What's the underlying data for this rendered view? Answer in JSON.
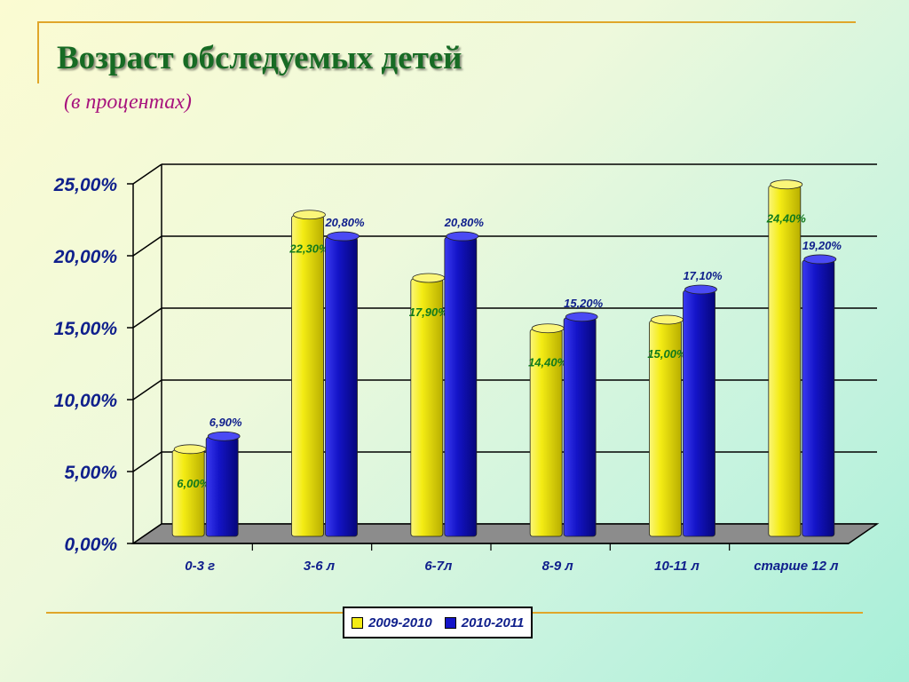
{
  "slide": {
    "title": "Возраст  обследуемых  детей",
    "subtitle": "(в процентах)"
  },
  "chart_data": {
    "type": "bar",
    "title": "",
    "xlabel": "",
    "ylabel": "",
    "categories": [
      "0-3 г",
      "3-6 л",
      "6-7л",
      "8-9 л",
      "10-11 л",
      "старше 12 л"
    ],
    "series": [
      {
        "name": "2009-2010",
        "color": "#f4ec14",
        "values": [
          6.0,
          22.3,
          17.9,
          14.4,
          15.0,
          24.4
        ],
        "labels": [
          "6,00%",
          "22,30%",
          "17,90%",
          "14,40%",
          "15,00%",
          "24,40%"
        ]
      },
      {
        "name": "2010-2011",
        "color": "#1414c8",
        "values": [
          6.9,
          20.8,
          20.8,
          15.2,
          17.1,
          19.2
        ],
        "labels": [
          "6,90%",
          "20,80%",
          "20,80%",
          "15,20%",
          "17,10%",
          "19,20%"
        ]
      }
    ],
    "ylim": [
      0,
      25
    ],
    "yticks": [
      0,
      5,
      10,
      15,
      20,
      25
    ],
    "ytick_labels": [
      "0,00%",
      "5,00%",
      "10,00%",
      "15,00%",
      "20,00%",
      "25,00%"
    ],
    "grid": true,
    "legend_position": "bottom"
  }
}
